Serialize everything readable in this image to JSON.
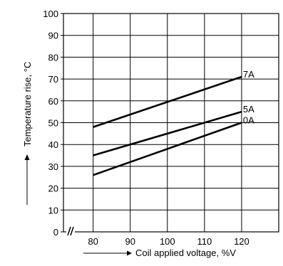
{
  "chart_data": {
    "type": "line",
    "title": "",
    "xlabel": "Coil applied voltage, %V",
    "ylabel": "Temperature rise, °C",
    "xlim": [
      72,
      130
    ],
    "ylim": [
      0,
      100
    ],
    "x_ticks": [
      "80",
      "90",
      "100",
      "110",
      "120"
    ],
    "y_ticks": [
      "0",
      "10",
      "20",
      "30",
      "40",
      "50",
      "60",
      "70",
      "80",
      "90",
      "100"
    ],
    "grid": true,
    "axis_break": "x",
    "series": [
      {
        "name": "7A",
        "x": [
          80,
          120
        ],
        "y": [
          48,
          71
        ]
      },
      {
        "name": "5A",
        "x": [
          80,
          120
        ],
        "y": [
          35,
          55
        ]
      },
      {
        "name": "0A",
        "x": [
          80,
          120
        ],
        "y": [
          26,
          50
        ]
      }
    ],
    "colors": {
      "line": "#000000",
      "grid": "#000000"
    }
  }
}
